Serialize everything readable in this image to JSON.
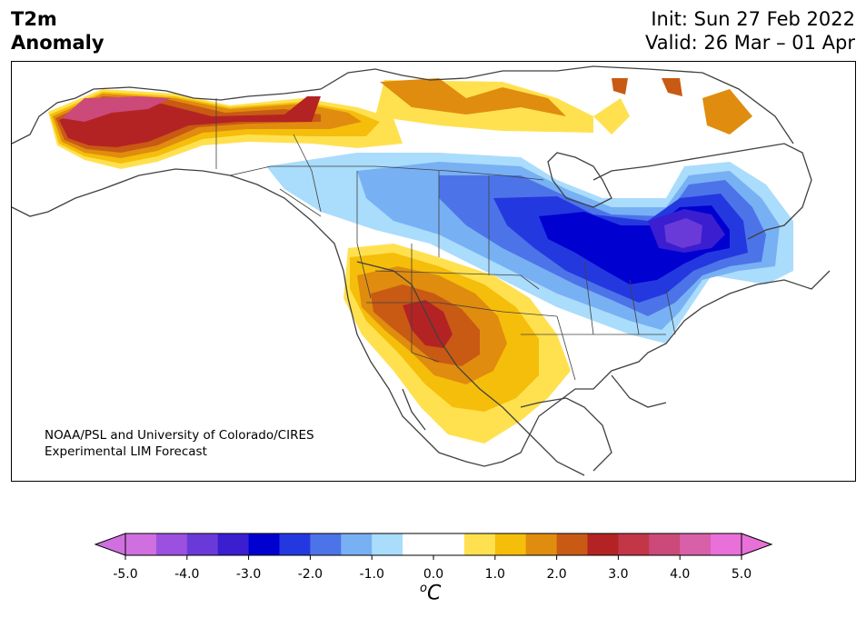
{
  "header": {
    "title_line1": "T2m",
    "title_line2": "Anomaly",
    "init": "Init: Sun 27 Feb 2022",
    "valid": "Valid: 26 Mar – 01 Apr"
  },
  "credit": {
    "line1": "NOAA/PSL and University of Colorado/CIRES",
    "line2": "Experimental LIM Forecast"
  },
  "colorbar": {
    "unit_base": "C",
    "unit_sup": "o",
    "ticks": [
      "-5.0",
      "-4.0",
      "-3.0",
      "-2.0",
      "-1.0",
      "0.0",
      "1.0",
      "2.0",
      "3.0",
      "4.0",
      "5.0"
    ],
    "colors": [
      "#d070e0",
      "#9c50e0",
      "#6a3ad8",
      "#3a1ed0",
      "#0000d0",
      "#2438e0",
      "#4c74e8",
      "#78b0f4",
      "#aadcfc",
      "#ffffff",
      "#ffffff",
      "#ffe150",
      "#f5be0a",
      "#e08c0e",
      "#c85a14",
      "#b42323",
      "#c23648",
      "#cc4a7a",
      "#d860a8",
      "#e870d8"
    ],
    "under_color": "#d070e0",
    "over_color": "#e870d8"
  },
  "map": {
    "anomaly_regions": [
      {
        "region": "Alaska",
        "anomaly_c": 3.0
      },
      {
        "region": "Western Canada",
        "anomaly_c": 1.0
      },
      {
        "region": "Canadian Arctic",
        "anomaly_c": 2.0
      },
      {
        "region": "US Southwest",
        "anomaly_c": 3.0
      },
      {
        "region": "Northern Plains",
        "anomaly_c": -1.5
      },
      {
        "region": "Great Lakes / Ontario",
        "anomaly_c": -3.0
      },
      {
        "region": "Quebec",
        "anomaly_c": -3.5
      },
      {
        "region": "US Northeast",
        "anomaly_c": -2.0
      }
    ]
  }
}
